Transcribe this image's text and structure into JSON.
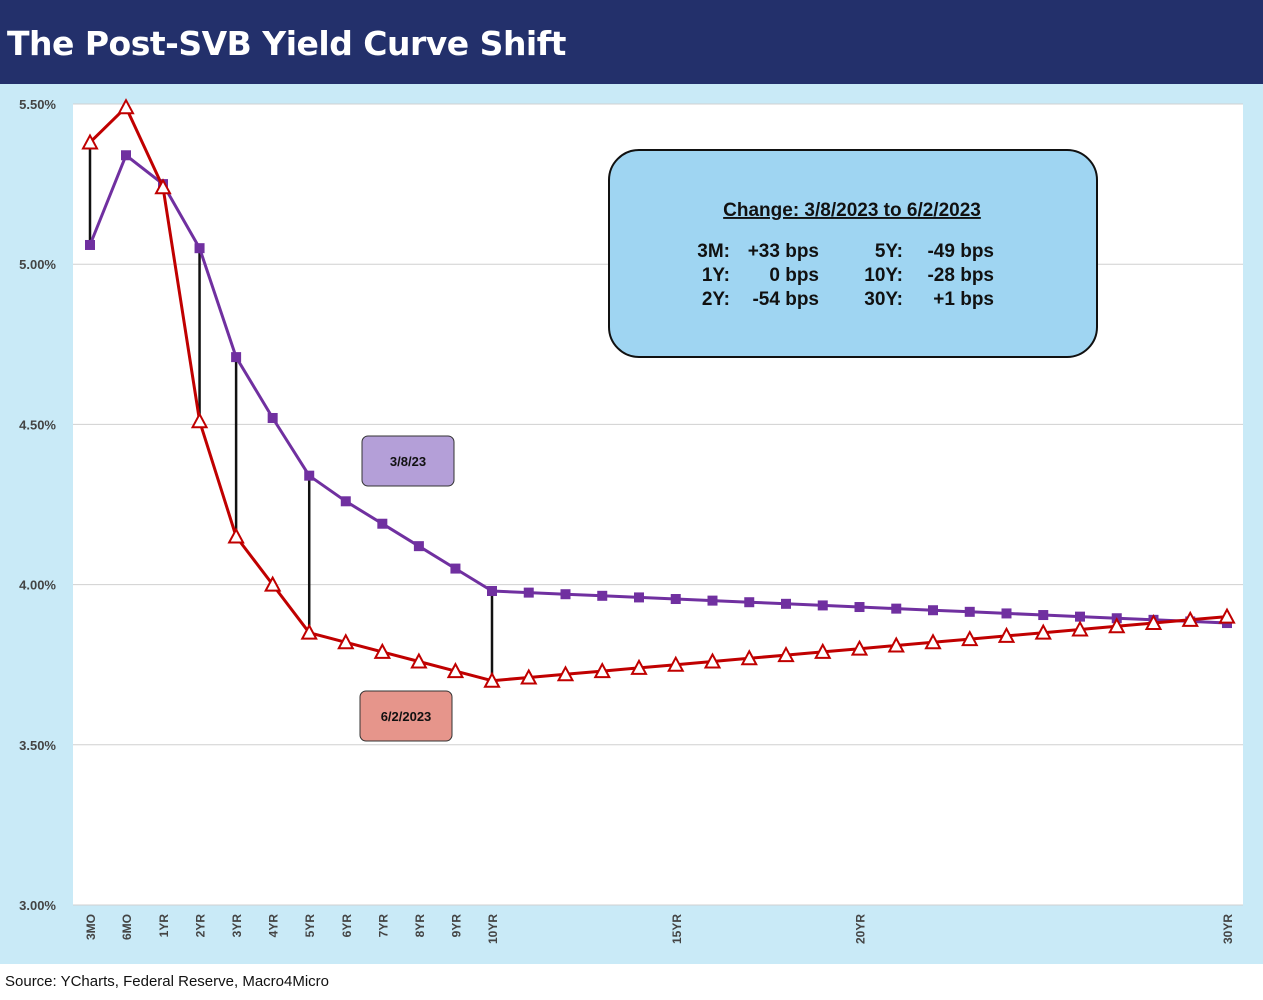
{
  "title": "The Post-SVB Yield Curve Shift",
  "source": "Source: YCharts, Federal Reserve, Macro4Micro",
  "chart_data": {
    "type": "line",
    "title": "The Post-SVB Yield Curve Shift",
    "ylim": [
      3.0,
      5.5
    ],
    "yticks": [
      "3.00%",
      "3.50%",
      "4.00%",
      "4.50%",
      "5.00%",
      "5.50%"
    ],
    "ytick_values": [
      3.0,
      3.5,
      4.0,
      4.5,
      5.0,
      5.5
    ],
    "xlim": [
      0,
      30
    ],
    "x": [
      0.25,
      0.5,
      1,
      2,
      3,
      4,
      5,
      6,
      7,
      8,
      9,
      10,
      11,
      12,
      13,
      14,
      15,
      16,
      17,
      18,
      19,
      20,
      21,
      22,
      23,
      24,
      25,
      26,
      27,
      28,
      29,
      30
    ],
    "xtick_labels": [
      "3MO",
      "6MO",
      "1YR",
      "2YR",
      "3YR",
      "4YR",
      "5YR",
      "6YR",
      "7YR",
      "8YR",
      "9YR",
      "10YR",
      "15YR",
      "20YR",
      "30YR"
    ],
    "xtick_values": [
      0.25,
      0.5,
      1,
      2,
      3,
      4,
      5,
      6,
      7,
      8,
      9,
      10,
      15,
      20,
      30
    ],
    "series": [
      {
        "name": "3/8/23",
        "color": "#7030a0",
        "marker": "square",
        "values": [
          5.06,
          5.34,
          5.25,
          5.05,
          4.71,
          4.52,
          4.34,
          4.26,
          4.19,
          4.12,
          4.05,
          3.98,
          3.975,
          3.97,
          3.965,
          3.96,
          3.955,
          3.95,
          3.945,
          3.94,
          3.935,
          3.93,
          3.925,
          3.92,
          3.915,
          3.91,
          3.905,
          3.9,
          3.895,
          3.89,
          3.885,
          3.88
        ]
      },
      {
        "name": "6/2/2023",
        "color": "#c00000",
        "marker": "triangle",
        "values": [
          5.38,
          5.49,
          5.24,
          4.51,
          4.15,
          4.0,
          3.85,
          3.82,
          3.79,
          3.76,
          3.73,
          3.7,
          3.71,
          3.72,
          3.73,
          3.74,
          3.75,
          3.76,
          3.77,
          3.78,
          3.79,
          3.8,
          3.81,
          3.82,
          3.83,
          3.84,
          3.85,
          3.86,
          3.87,
          3.88,
          3.89,
          3.9
        ]
      }
    ],
    "change_lines_at": [
      0.25,
      2,
      3,
      5,
      10
    ],
    "annotation": {
      "title": "Change: 3/8/2023 to 6/2/2023",
      "rows": [
        [
          "3M:",
          "+33 bps",
          "5Y:",
          "-49 bps"
        ],
        [
          "1Y:",
          "0 bps",
          "10Y:",
          "-28 bps"
        ],
        [
          "2Y:",
          "-54 bps",
          "30Y:",
          "+1 bps"
        ]
      ]
    },
    "series_labels": [
      "3/8/23",
      "6/2/2023"
    ]
  },
  "colors": {
    "title_bar": "#23306b",
    "frame": "#c9eaf7",
    "grid": "#d0d0d0",
    "annotation_box": "#9fd5f2",
    "label_3_8": "#b49fd8",
    "label_6_2": "#e6958b"
  }
}
